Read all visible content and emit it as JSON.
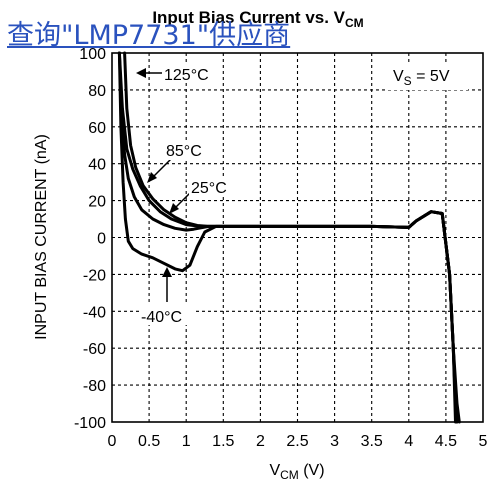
{
  "overlay_link": "查询\"LMP7731\"供应商",
  "chart_data": {
    "type": "line",
    "title": "Input Bias Current vs. V",
    "title_sub": "CM",
    "xlabel": "V",
    "xlabel_sub": "CM",
    "xlabel_unit": " (V)",
    "ylabel": "INPUT BIAS CURRENT (nA)",
    "xlim": [
      0,
      5
    ],
    "ylim": [
      -100,
      100
    ],
    "xticks": [
      "0",
      "0.5",
      "1",
      "1.5",
      "2",
      "2.5",
      "3",
      "3.5",
      "4",
      "4.5",
      "5"
    ],
    "yticks": [
      "100",
      "80",
      "60",
      "40",
      "20",
      "0",
      "-20",
      "-40",
      "-60",
      "-80",
      "-100"
    ],
    "grid": true,
    "annotations": {
      "vs": {
        "prefix": "V",
        "sub": "S",
        "suffix": " = 5V"
      },
      "t125": "125°C",
      "t85": "85°C",
      "t25": "25°C",
      "tm40": "-40°C"
    },
    "series": [
      {
        "x": [
          0.1,
          0.14,
          0.2,
          0.28,
          0.38,
          0.5,
          0.65,
          0.8,
          1.0,
          1.2,
          1.5,
          2.5,
          3.5,
          4.0,
          4.1,
          4.3,
          4.45,
          4.55,
          4.6,
          4.65,
          4.68
        ],
        "y": [
          100,
          70,
          48,
          37,
          28,
          20,
          14,
          10,
          7,
          6,
          6,
          6,
          6,
          5.5,
          9,
          14,
          13,
          -20,
          -60,
          -90,
          -100
        ]
      },
      {
        "x": [
          0.17,
          0.2,
          0.25,
          0.32,
          0.42,
          0.55,
          0.7,
          0.85,
          1.0,
          1.15,
          1.3,
          2.5,
          3.5,
          4.0,
          4.1,
          4.3,
          4.45,
          4.55,
          4.6,
          4.63,
          4.65
        ],
        "y": [
          100,
          70,
          50,
          38,
          28,
          21,
          15,
          11,
          8,
          6.5,
          6,
          6,
          6,
          5.5,
          9,
          14,
          13,
          -20,
          -60,
          -90,
          -100
        ]
      },
      {
        "x": [
          0.1,
          0.13,
          0.17,
          0.22,
          0.3,
          0.4,
          0.55,
          0.7,
          0.85,
          1.0,
          1.1,
          1.3,
          2.5,
          3.5,
          4.0,
          4.1,
          4.3,
          4.45,
          4.55,
          4.6,
          4.64
        ],
        "y": [
          100,
          65,
          45,
          32,
          22,
          15,
          10,
          7,
          5,
          4,
          4.5,
          6,
          6,
          6,
          5.5,
          9,
          14,
          13,
          -20,
          -60,
          -100
        ]
      },
      {
        "x": [
          0.1,
          0.12,
          0.15,
          0.18,
          0.22,
          0.28,
          0.4,
          0.55,
          0.7,
          0.85,
          0.95,
          1.05,
          1.15,
          1.25,
          1.4,
          2.5,
          3.5,
          4.0,
          4.1,
          4.3,
          4.45,
          4.55,
          4.6,
          4.63
        ],
        "y": [
          100,
          60,
          30,
          10,
          -2,
          -6,
          -9,
          -11,
          -14,
          -17,
          -18,
          -15,
          -5,
          3,
          6,
          6,
          6,
          5.5,
          9,
          14,
          13,
          -20,
          -60,
          -100
        ]
      }
    ]
  }
}
